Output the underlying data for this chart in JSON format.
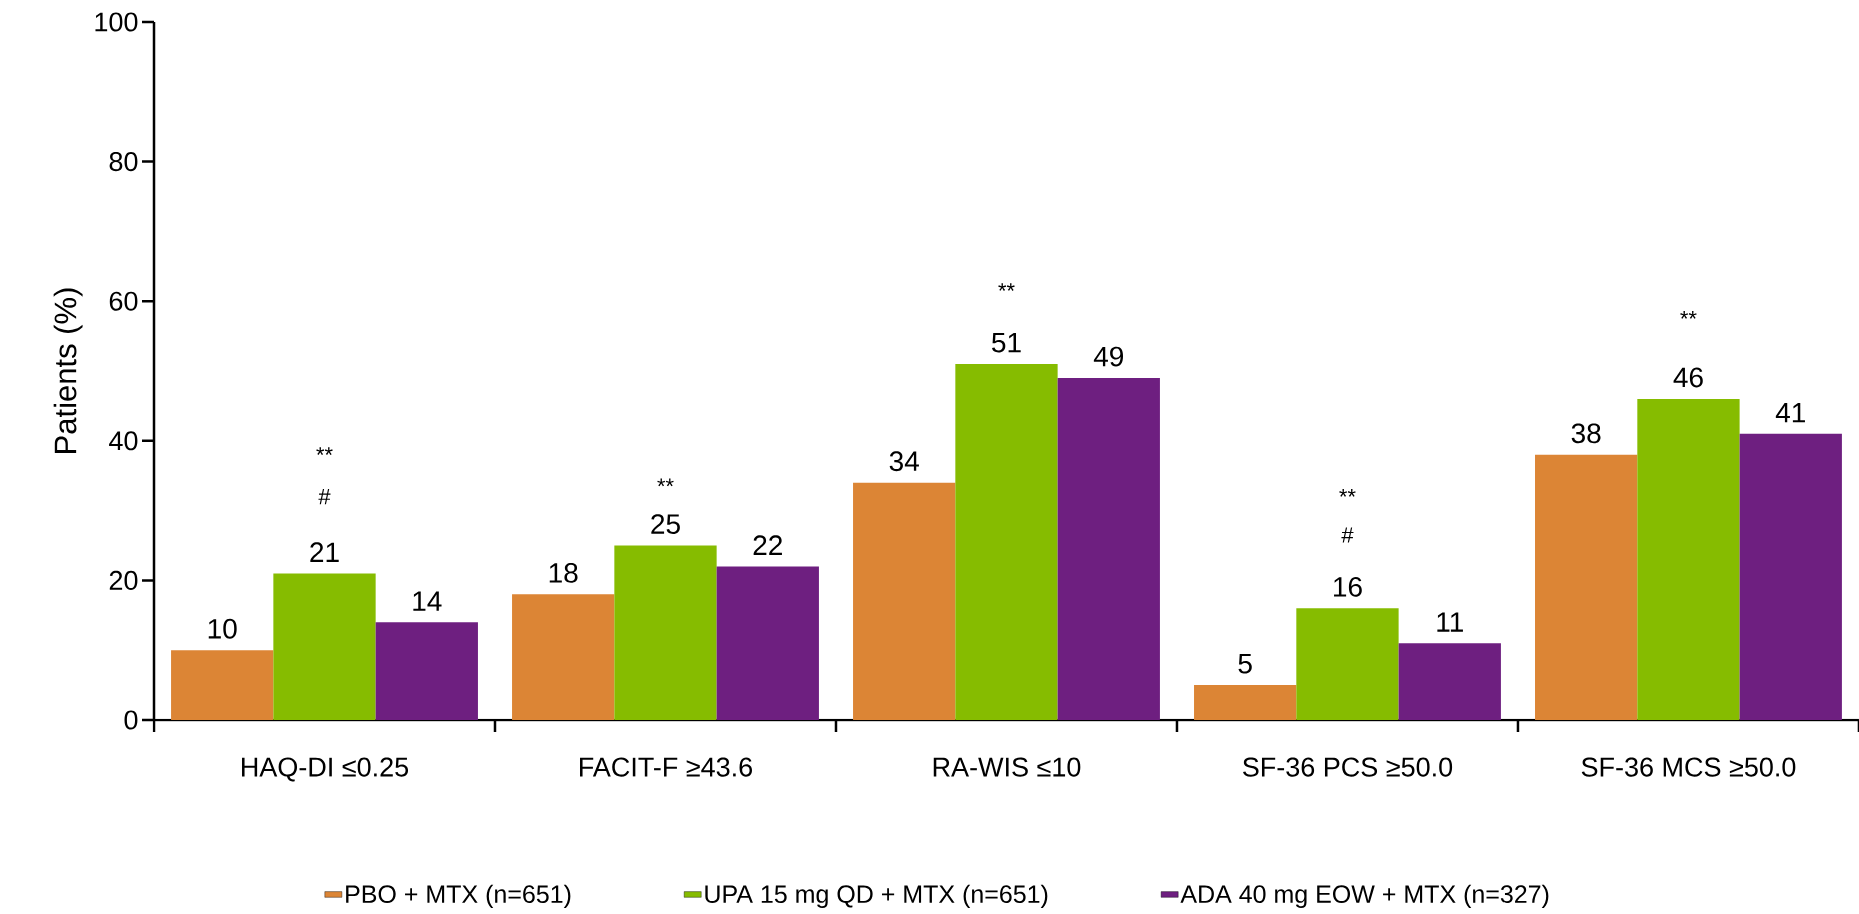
{
  "chart_data": {
    "type": "bar",
    "ylabel": "Patients (%)",
    "categories": [
      "HAQ-DI ≤0.25",
      "FACIT-F ≥43.6",
      "RA-WIS ≤10",
      "SF-36 PCS ≥50.0",
      "SF-36 MCS ≥50.0"
    ],
    "series": [
      {
        "name": "PBO + MTX (n=651)",
        "color": "#dc8535",
        "values": [
          10,
          18,
          34,
          5,
          38
        ]
      },
      {
        "name": "UPA 15 mg QD + MTX (n=651)",
        "color": "#86bc00",
        "values": [
          21,
          25,
          51,
          16,
          46
        ]
      },
      {
        "name": "ADA 40 mg EOW + MTX (n=327)",
        "color": "#6e1f80",
        "values": [
          14,
          22,
          49,
          11,
          41
        ]
      }
    ],
    "ylim": [
      0,
      100
    ],
    "yticks": [
      0,
      20,
      40,
      60,
      80,
      100
    ],
    "data_labels": true,
    "legend": "bottom",
    "grid": false,
    "annotations": [
      "**",
      "#",
      "**",
      "**",
      "**",
      "#",
      "**"
    ]
  }
}
